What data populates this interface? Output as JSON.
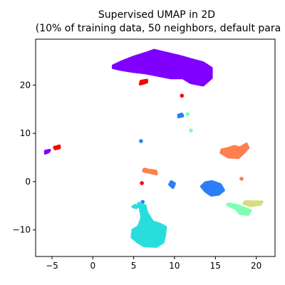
{
  "chart_data": {
    "type": "scatter",
    "title": "Supervised UMAP in 2D",
    "subtitle": "(10% of training data, 50 neighbors, default para",
    "xlabel": "",
    "ylabel": "",
    "xlim": [
      -7,
      22.3
    ],
    "ylim": [
      -15.5,
      29.5
    ],
    "x_ticks": [
      -5,
      0,
      5,
      10,
      15,
      20
    ],
    "y_ticks": [
      -10,
      0,
      10,
      20
    ],
    "grid": false,
    "legend": false,
    "clusters": [
      {
        "color": "#8000ff",
        "shape": "blob",
        "points": [
          [
            2.5,
            24
          ],
          [
            3.5,
            24.8
          ],
          [
            5,
            25.8
          ],
          [
            6.5,
            26.6
          ],
          [
            7.5,
            27.2
          ],
          [
            9,
            26.6
          ],
          [
            10.5,
            26
          ],
          [
            12,
            25.3
          ],
          [
            13.5,
            24.6
          ],
          [
            14.5,
            23.5
          ],
          [
            14.5,
            21.5
          ],
          [
            13.5,
            20
          ],
          [
            12,
            20.5
          ],
          [
            11,
            21.5
          ],
          [
            9.5,
            21.5
          ],
          [
            8,
            22
          ],
          [
            6.5,
            22.5
          ],
          [
            5,
            22.8
          ],
          [
            3.5,
            23.2
          ],
          [
            2.5,
            23.6
          ]
        ]
      },
      {
        "color": "#ff0000",
        "shape": "blob",
        "points": [
          [
            5.8,
            20.2
          ],
          [
            6.6,
            20.6
          ],
          [
            6.6,
            21
          ],
          [
            5.9,
            20.8
          ]
        ]
      },
      {
        "color": "#ff0000",
        "shape": "dots",
        "points": [
          [
            10.9,
            17.8
          ],
          [
            6,
            -0.3
          ]
        ]
      },
      {
        "color": "#8000ff",
        "shape": "blob",
        "points": [
          [
            -5.8,
            5.9
          ],
          [
            -5.4,
            6.2
          ],
          [
            -5.3,
            6.5
          ],
          [
            -5.8,
            6.3
          ]
        ]
      },
      {
        "color": "#ff0000",
        "shape": "blob",
        "points": [
          [
            -4.6,
            6.8
          ],
          [
            -4.1,
            7
          ],
          [
            -4.1,
            7.4
          ],
          [
            -4.7,
            7.1
          ]
        ]
      },
      {
        "color": "#2c7ef7",
        "shape": "blob",
        "points": [
          [
            10.5,
            13.4
          ],
          [
            11,
            13.6
          ],
          [
            10.9,
            14
          ],
          [
            10.5,
            13.8
          ]
        ]
      },
      {
        "color": "#2c7ef7",
        "shape": "dots",
        "points": [
          [
            5.9,
            8.4
          ],
          [
            6.1,
            -4.2
          ]
        ]
      },
      {
        "color": "#80ffb4",
        "shape": "dots",
        "points": [
          [
            11.6,
            14
          ],
          [
            12,
            10.6
          ]
        ]
      },
      {
        "color": "#ff7f4f",
        "shape": "blob",
        "points": [
          [
            15.7,
            6
          ],
          [
            16.6,
            5.1
          ],
          [
            17.8,
            5
          ],
          [
            18.4,
            5.9
          ],
          [
            19,
            7
          ],
          [
            18.8,
            7.8
          ],
          [
            18,
            7
          ],
          [
            17.3,
            7.3
          ],
          [
            16.4,
            6.8
          ],
          [
            15.8,
            6.6
          ]
        ]
      },
      {
        "color": "#ff7f4f",
        "shape": "dots",
        "points": [
          [
            18.2,
            0.6
          ]
        ]
      },
      {
        "color": "#ff7f4f",
        "shape": "blob",
        "points": [
          [
            6.2,
            2.2
          ],
          [
            7,
            1.9
          ],
          [
            7.8,
            1.6
          ],
          [
            7.7,
            2.2
          ],
          [
            6.8,
            2.4
          ],
          [
            6.3,
            2.6
          ]
        ]
      },
      {
        "color": "#2c7ef7",
        "shape": "blob",
        "points": [
          [
            13.3,
            -1
          ],
          [
            13.8,
            -2
          ],
          [
            14.5,
            -2.8
          ],
          [
            15.4,
            -2.6
          ],
          [
            16,
            -1.8
          ],
          [
            15.6,
            -0.6
          ],
          [
            14.6,
            0
          ],
          [
            13.8,
            -0.2
          ]
        ]
      },
      {
        "color": "#2c7ef7",
        "shape": "blob",
        "points": [
          [
            9.4,
            -0.6
          ],
          [
            9.8,
            -1.2
          ],
          [
            10,
            -0.4
          ],
          [
            9.6,
            0
          ]
        ]
      },
      {
        "color": "#d4dd80",
        "shape": "blob",
        "points": [
          [
            18.5,
            -4.5
          ],
          [
            19.3,
            -5
          ],
          [
            20.5,
            -4.7
          ],
          [
            20.7,
            -4.2
          ],
          [
            19.5,
            -4.2
          ],
          [
            18.7,
            -4.1
          ]
        ]
      },
      {
        "color": "#80ffb4",
        "shape": "blob",
        "points": [
          [
            16.5,
            -4.8
          ],
          [
            17.5,
            -5.6
          ],
          [
            18,
            -6.6
          ],
          [
            19,
            -6.8
          ],
          [
            19.3,
            -6
          ],
          [
            18.4,
            -5.4
          ],
          [
            17.6,
            -4.9
          ],
          [
            16.6,
            -4.6
          ]
        ]
      },
      {
        "color": "#2adddd",
        "shape": "blob",
        "points": [
          [
            4.9,
            -5.2
          ],
          [
            5.3,
            -5.4
          ],
          [
            5.6,
            -5.1
          ],
          [
            5.2,
            -4.9
          ]
        ]
      },
      {
        "color": "#2adddd",
        "shape": "blob",
        "points": [
          [
            5.6,
            -4.5
          ],
          [
            6.4,
            -5
          ],
          [
            6.6,
            -6.4
          ],
          [
            7.3,
            -8.3
          ],
          [
            8.2,
            -8.8
          ],
          [
            8.9,
            -9.4
          ],
          [
            8.8,
            -11
          ],
          [
            8.6,
            -12.5
          ],
          [
            7.8,
            -13.4
          ],
          [
            6.3,
            -13.3
          ],
          [
            5.5,
            -12.5
          ],
          [
            4.8,
            -11.5
          ],
          [
            4.9,
            -10
          ],
          [
            5.6,
            -9.3
          ],
          [
            6,
            -7.5
          ],
          [
            5.8,
            -5.4
          ]
        ]
      }
    ]
  }
}
